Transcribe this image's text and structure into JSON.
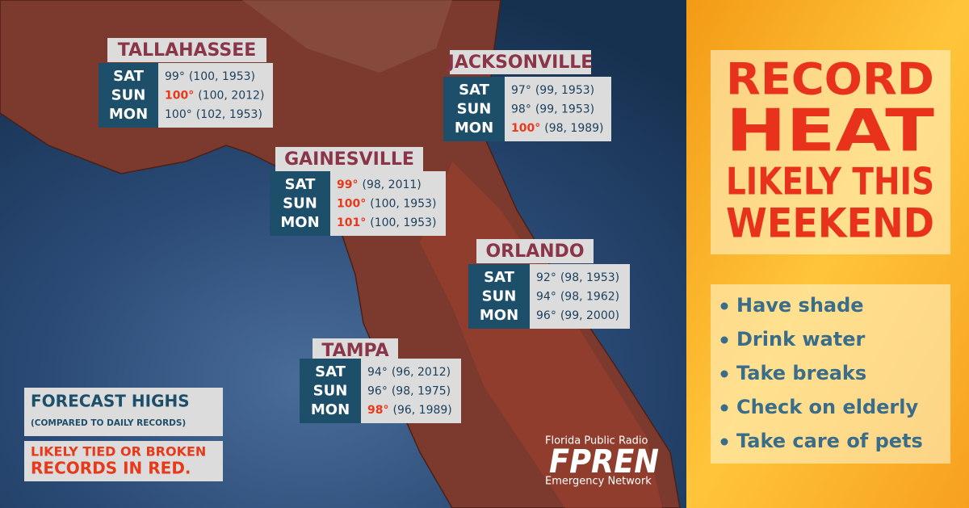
{
  "cities": [
    {
      "name": "TALLAHASSEE",
      "rows": [
        {
          "day": "SAT",
          "high": "99°",
          "record": "(100, 1953)",
          "likely_record": false
        },
        {
          "day": "SUN",
          "high": "100°",
          "record": "(100, 2012)",
          "likely_record": true
        },
        {
          "day": "MON",
          "high": "100°",
          "record": "(102, 1953)",
          "likely_record": false
        }
      ]
    },
    {
      "name": "JACKSONVILLE",
      "rows": [
        {
          "day": "SAT",
          "high": "97°",
          "record": "(99, 1953)",
          "likely_record": false
        },
        {
          "day": "SUN",
          "high": "98°",
          "record": "(99, 1953)",
          "likely_record": false
        },
        {
          "day": "MON",
          "high": "100°",
          "record": "(98, 1989)",
          "likely_record": true
        }
      ]
    },
    {
      "name": "GAINESVILLE",
      "rows": [
        {
          "day": "SAT",
          "high": "99°",
          "record": "(98, 2011)",
          "likely_record": true
        },
        {
          "day": "SUN",
          "high": "100°",
          "record": "(100, 1953)",
          "likely_record": true
        },
        {
          "day": "MON",
          "high": "101°",
          "record": "(100, 1953)",
          "likely_record": true
        }
      ]
    },
    {
      "name": "ORLANDO",
      "rows": [
        {
          "day": "SAT",
          "high": "92°",
          "record": "(98, 1953)",
          "likely_record": false
        },
        {
          "day": "SUN",
          "high": "94°",
          "record": "(98, 1962)",
          "likely_record": false
        },
        {
          "day": "MON",
          "high": "96°",
          "record": "(99, 2000)",
          "likely_record": false
        }
      ]
    },
    {
      "name": "TAMPA",
      "rows": [
        {
          "day": "SAT",
          "high": "94°",
          "record": "(96, 2012)",
          "likely_record": false
        },
        {
          "day": "SUN",
          "high": "96°",
          "record": "(98, 1975)",
          "likely_record": false
        },
        {
          "day": "MON",
          "high": "98°",
          "record": "(96, 1989)",
          "likely_record": true
        }
      ]
    }
  ],
  "legend": {
    "title": "FORECAST HIGHS",
    "subtitle": "(COMPARED TO DAILY RECORDS)",
    "note": [
      "LIKELY TIED OR BROKEN",
      "RECORDS IN RED."
    ]
  },
  "headline": [
    "RECORD",
    "HEAT",
    "LIKELY THIS",
    "WEEKEND"
  ],
  "tips": [
    "Have shade",
    "Drink water",
    "Take breaks",
    "Check on elderly",
    "Take care of pets"
  ],
  "logo": {
    "top": "Florida Public Radio",
    "name": "FPREN",
    "bottom": "Emergency Network"
  }
}
